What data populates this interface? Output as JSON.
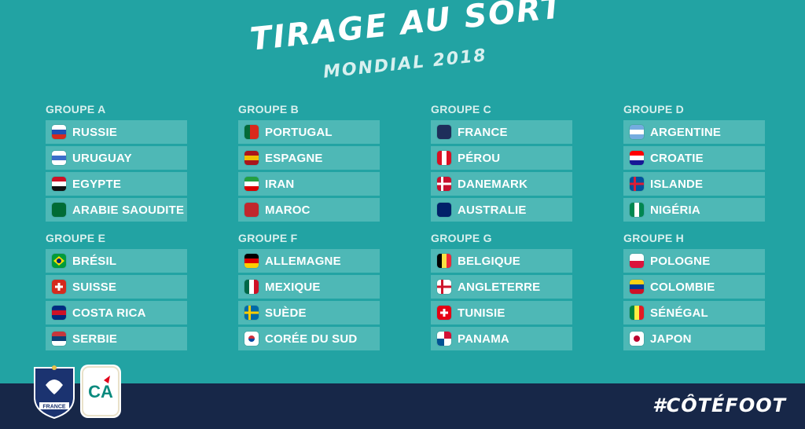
{
  "header": {
    "title": "TIRAGE AU SORT",
    "subtitle": "MONDIAL 2018"
  },
  "groups": [
    {
      "label": "GROUPE A",
      "teams": [
        {
          "name": "RUSSIE",
          "flag": [
            "#ffffff",
            "#1f4fb4",
            "#d52b1e"
          ],
          "layout": "h3"
        },
        {
          "name": "URUGUAY",
          "flag": [
            "#ffffff",
            "#3a6ec9",
            "#ffffff"
          ],
          "layout": "h3"
        },
        {
          "name": "EGYPTE",
          "flag": [
            "#ce1126",
            "#ffffff",
            "#111111"
          ],
          "layout": "h3"
        },
        {
          "name": "ARABIE SAOUDITE",
          "flag": [
            "#006c35",
            "#006c35",
            "#006c35"
          ],
          "layout": "solid"
        }
      ]
    },
    {
      "label": "GROUPE B",
      "teams": [
        {
          "name": "PORTUGAL",
          "flag": [
            "#046a38",
            "#da291c",
            "#da291c"
          ],
          "layout": "v2"
        },
        {
          "name": "ESPAGNE",
          "flag": [
            "#aa151b",
            "#f1bf00",
            "#aa151b"
          ],
          "layout": "h3"
        },
        {
          "name": "IRAN",
          "flag": [
            "#239f40",
            "#ffffff",
            "#da0000"
          ],
          "layout": "h3"
        },
        {
          "name": "MAROC",
          "flag": [
            "#c1272d",
            "#c1272d",
            "#c1272d"
          ],
          "layout": "solid"
        }
      ]
    },
    {
      "label": "GROUPE C",
      "teams": [
        {
          "name": "FRANCE",
          "flag": [
            "#1e2e5a",
            "#1e2e5a",
            "#1e2e5a"
          ],
          "layout": "solid"
        },
        {
          "name": "PÉROU",
          "flag": [
            "#d91023",
            "#ffffff",
            "#d91023"
          ],
          "layout": "v3"
        },
        {
          "name": "DANEMARK",
          "flag": [
            "#c8102e",
            "#ffffff",
            "#c8102e"
          ],
          "layout": "cross"
        },
        {
          "name": "AUSTRALIE",
          "flag": [
            "#012169",
            "#012169",
            "#012169"
          ],
          "layout": "solid"
        }
      ]
    },
    {
      "label": "GROUPE D",
      "teams": [
        {
          "name": "ARGENTINE",
          "flag": [
            "#74acdf",
            "#ffffff",
            "#74acdf"
          ],
          "layout": "h3"
        },
        {
          "name": "CROATIE",
          "flag": [
            "#ff0000",
            "#ffffff",
            "#171796"
          ],
          "layout": "h3"
        },
        {
          "name": "ISLANDE",
          "flag": [
            "#02529c",
            "#dc1e35",
            "#02529c"
          ],
          "layout": "cross"
        },
        {
          "name": "NIGÉRIA",
          "flag": [
            "#008751",
            "#ffffff",
            "#008751"
          ],
          "layout": "v3"
        }
      ]
    },
    {
      "label": "GROUPE E",
      "teams": [
        {
          "name": "BRÉSIL",
          "flag": [
            "#009c3b",
            "#ffdf00",
            "#002776"
          ],
          "layout": "diamond"
        },
        {
          "name": "SUISSE",
          "flag": [
            "#d52b1e",
            "#ffffff",
            "#d52b1e"
          ],
          "layout": "swiss"
        },
        {
          "name": "COSTA RICA",
          "flag": [
            "#002b7f",
            "#ce1126",
            "#002b7f"
          ],
          "layout": "h3"
        },
        {
          "name": "SERBIE",
          "flag": [
            "#c6363c",
            "#0c4076",
            "#ffffff"
          ],
          "layout": "h3"
        }
      ]
    },
    {
      "label": "GROUPE F",
      "teams": [
        {
          "name": "ALLEMAGNE",
          "flag": [
            "#000000",
            "#dd0000",
            "#ffce00"
          ],
          "layout": "h3"
        },
        {
          "name": "MEXIQUE",
          "flag": [
            "#006847",
            "#ffffff",
            "#ce1126"
          ],
          "layout": "v3"
        },
        {
          "name": "SUÈDE",
          "flag": [
            "#006aa7",
            "#fecc00",
            "#006aa7"
          ],
          "layout": "cross"
        },
        {
          "name": "CORÉE DU SUD",
          "flag": [
            "#ffffff",
            "#cd2e3a",
            "#0047a0"
          ],
          "layout": "korea"
        }
      ]
    },
    {
      "label": "GROUPE G",
      "teams": [
        {
          "name": "BELGIQUE",
          "flag": [
            "#000000",
            "#fae042",
            "#ed2939"
          ],
          "layout": "v3"
        },
        {
          "name": "ANGLETERRE",
          "flag": [
            "#ffffff",
            "#cf142b",
            "#ffffff"
          ],
          "layout": "cross"
        },
        {
          "name": "TUNISIE",
          "flag": [
            "#e70013",
            "#ffffff",
            "#e70013"
          ],
          "layout": "swiss"
        },
        {
          "name": "PANAMA",
          "flag": [
            "#ffffff",
            "#d21034",
            "#005293"
          ],
          "layout": "quad"
        }
      ]
    },
    {
      "label": "GROUPE H",
      "teams": [
        {
          "name": "POLOGNE",
          "flag": [
            "#ffffff",
            "#dc143c",
            "#dc143c"
          ],
          "layout": "h2"
        },
        {
          "name": "COLOMBIE",
          "flag": [
            "#fcd116",
            "#003893",
            "#ce1126"
          ],
          "layout": "h3"
        },
        {
          "name": "SÉNÉGAL",
          "flag": [
            "#00853f",
            "#fdef42",
            "#e31b23"
          ],
          "layout": "v3"
        },
        {
          "name": "JAPON",
          "flag": [
            "#ffffff",
            "#bc002d",
            "#ffffff"
          ],
          "layout": "japan"
        }
      ]
    }
  ],
  "footer": {
    "hashtag": "#CÔTÉFOOT",
    "federation_badge_text": "FRANCE",
    "sponsor_badge_text": "CA"
  }
}
